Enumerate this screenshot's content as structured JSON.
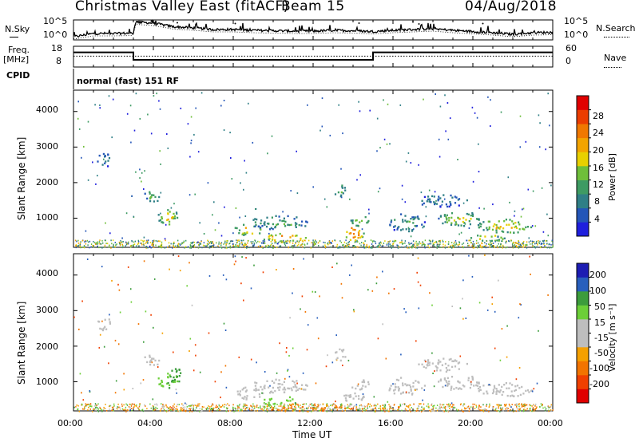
{
  "header": {
    "title": "Christmas Valley East (fitACF)",
    "beam": "Beam 15",
    "date": "04/Aug/2018"
  },
  "left_labels": {
    "nsky": "N.Sky",
    "freq": "Freq.",
    "freq_unit": "[MHz]",
    "cpid": "CPID"
  },
  "right_labels": {
    "nsearch": "N.Search",
    "nave": "Nave"
  },
  "cpid_text": "normal (fast) 151 RF",
  "colors": {
    "power": [
      "#1f1fdd",
      "#2456b8",
      "#2f7f86",
      "#3e9b63",
      "#6fbf3a",
      "#e8d000",
      "#f3a400",
      "#f07800",
      "#eb3d00",
      "#e00000"
    ],
    "velocity": [
      "#e00000",
      "#f04000",
      "#f27400",
      "#f5a000",
      "#bebebe",
      "#bebebe",
      "#6ccf38",
      "#3c9c3c",
      "#285fbd",
      "#1d1db3"
    ]
  },
  "chart_data": [
    {
      "type": "line",
      "title": "N.Sky / N.Search",
      "y_ticks": [
        "10^5",
        "10^0"
      ],
      "right_ticks": [
        "10^5",
        "10^0"
      ],
      "x": [
        0,
        1,
        2,
        3,
        3.1,
        4,
        5,
        6,
        7,
        8,
        9,
        10,
        11,
        12,
        13,
        14,
        15,
        16,
        17,
        18,
        19,
        20,
        21,
        22,
        23,
        24
      ],
      "values": [
        0.8,
        1.6,
        1.6,
        1.7,
        4.5,
        4.2,
        3.3,
        3.0,
        2.6,
        2.6,
        2.4,
        2.3,
        2.2,
        2.2,
        2.4,
        2.3,
        2.1,
        2.4,
        2.6,
        2.8,
        2.4,
        2.1,
        1.8,
        1.4,
        1.8,
        1.9
      ]
    },
    {
      "type": "line",
      "title": "Freq / Nave",
      "y_ticks": [
        "18",
        "8"
      ],
      "right_ticks": [
        "60",
        "0"
      ],
      "freq_steps": [
        {
          "start": 0,
          "end": 3,
          "value": 15.2
        },
        {
          "start": 3,
          "end": 15,
          "value": 10.5
        },
        {
          "start": 15,
          "end": 24,
          "value": 15.2
        }
      ],
      "nave_level": 12.8
    },
    {
      "type": "heatmap",
      "ylabel": "Slant Range [km]",
      "y_ticks": [
        "1000",
        "2000",
        "3000",
        "4000"
      ],
      "ylim": [
        180,
        4600
      ],
      "colorbar_label": "Power [dB]",
      "colorbar_ticks": [
        "4",
        "8",
        "12",
        "16",
        "20",
        "24",
        "28"
      ],
      "colorbar_range": [
        0,
        32
      ],
      "blobs": [
        {
          "x": 4.7,
          "y": 1050,
          "dx": 0.55,
          "dy": 220,
          "v": 22
        },
        {
          "x": 3.9,
          "y": 1650,
          "dx": 0.45,
          "dy": 180,
          "v": 14
        },
        {
          "x": 1.5,
          "y": 2650,
          "dx": 0.35,
          "dy": 250,
          "v": 10
        },
        {
          "x": 8.7,
          "y": 700,
          "dx": 0.75,
          "dy": 180,
          "v": 22
        },
        {
          "x": 10.5,
          "y": 470,
          "dx": 1.1,
          "dy": 130,
          "v": 28
        },
        {
          "x": 10.3,
          "y": 900,
          "dx": 1.5,
          "dy": 200,
          "v": 14
        },
        {
          "x": 14.0,
          "y": 620,
          "dx": 0.55,
          "dy": 260,
          "v": 30
        },
        {
          "x": 14.3,
          "y": 950,
          "dx": 0.5,
          "dy": 150,
          "v": 18
        },
        {
          "x": 13.3,
          "y": 1800,
          "dx": 0.3,
          "dy": 180,
          "v": 14
        },
        {
          "x": 16.6,
          "y": 900,
          "dx": 1.0,
          "dy": 250,
          "v": 12
        },
        {
          "x": 18.5,
          "y": 1500,
          "dx": 1.3,
          "dy": 200,
          "v": 10
        },
        {
          "x": 19.4,
          "y": 1000,
          "dx": 1.2,
          "dy": 200,
          "v": 18
        },
        {
          "x": 21.6,
          "y": 800,
          "dx": 1.4,
          "dy": 200,
          "v": 22
        },
        {
          "x": 20.7,
          "y": 470,
          "dx": 0.9,
          "dy": 100,
          "v": 24
        }
      ]
    },
    {
      "type": "heatmap",
      "xlabel": "Time UT",
      "ylabel": "Slant Range [km]",
      "x_ticks": [
        "00:00",
        "04:00",
        "08:00",
        "12:00",
        "16:00",
        "20:00",
        "00:00"
      ],
      "xlim": [
        0,
        24
      ],
      "y_ticks": [
        "1000",
        "2000",
        "3000",
        "4000"
      ],
      "ylim": [
        180,
        4600
      ],
      "colorbar_label": "Velocity [m s⁻¹]",
      "colorbar_ticks": [
        "-200",
        "-100",
        "-50",
        "-15",
        "15",
        "50",
        "100",
        "200"
      ],
      "colorbar_range": [
        -250,
        250
      ],
      "blobs": [
        {
          "x": 4.7,
          "y": 1050,
          "dx": 0.55,
          "dy": 220,
          "v": 45
        },
        {
          "x": 3.9,
          "y": 1650,
          "dx": 0.45,
          "dy": 180,
          "v": 0
        },
        {
          "x": 5.1,
          "y": 1200,
          "dx": 0.3,
          "dy": 250,
          "v": 80
        },
        {
          "x": 1.5,
          "y": 2650,
          "dx": 0.35,
          "dy": 250,
          "v": 0
        },
        {
          "x": 8.7,
          "y": 700,
          "dx": 0.75,
          "dy": 180,
          "v": 0
        },
        {
          "x": 10.5,
          "y": 470,
          "dx": 1.1,
          "dy": 130,
          "v": 40
        },
        {
          "x": 10.3,
          "y": 900,
          "dx": 1.5,
          "dy": 200,
          "v": 0
        },
        {
          "x": 14.0,
          "y": 620,
          "dx": 0.55,
          "dy": 260,
          "v": 0
        },
        {
          "x": 14.3,
          "y": 950,
          "dx": 0.5,
          "dy": 150,
          "v": 0
        },
        {
          "x": 13.3,
          "y": 1800,
          "dx": 0.3,
          "dy": 180,
          "v": 0
        },
        {
          "x": 16.6,
          "y": 900,
          "dx": 1.0,
          "dy": 250,
          "v": 0
        },
        {
          "x": 18.5,
          "y": 1500,
          "dx": 1.3,
          "dy": 200,
          "v": 0
        },
        {
          "x": 19.4,
          "y": 1000,
          "dx": 1.2,
          "dy": 200,
          "v": 0
        },
        {
          "x": 21.6,
          "y": 800,
          "dx": 1.4,
          "dy": 200,
          "v": 0
        },
        {
          "x": 12.0,
          "y": 260,
          "dx": 2.5,
          "dy": 70,
          "v": -70
        }
      ]
    }
  ]
}
